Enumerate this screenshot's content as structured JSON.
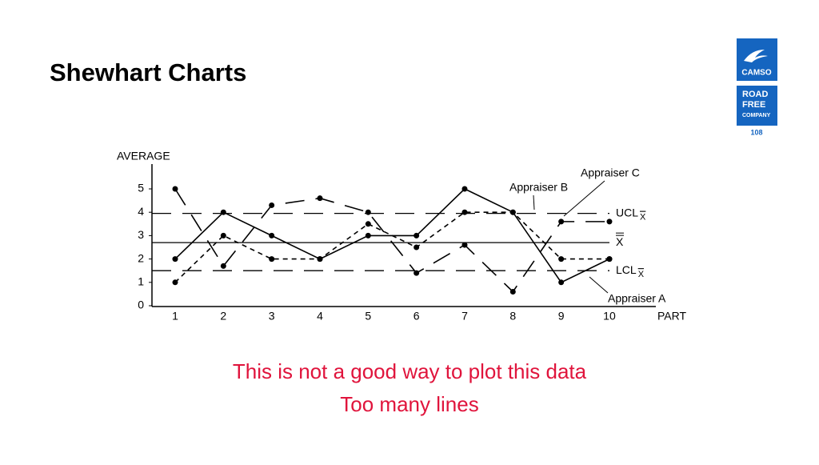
{
  "slide": {
    "title": "Shewhart Charts",
    "logo_top": "CAMSO",
    "logo_bottom": [
      "ROAD",
      "FREE",
      "COMPANY"
    ],
    "page_number": "108",
    "notes": [
      "This is not a good way to plot this data",
      "Too many lines"
    ]
  },
  "chart_data": {
    "type": "line",
    "y_label": "AVERAGE",
    "x_label": "PART",
    "categories": [
      "1",
      "2",
      "3",
      "4",
      "5",
      "6",
      "7",
      "8",
      "9",
      "10"
    ],
    "ylim": [
      0,
      6
    ],
    "yticks": [
      0,
      1,
      2,
      3,
      4,
      5
    ],
    "series": [
      {
        "name": "Appraiser A",
        "color": "#000000",
        "dash": "solid",
        "values": [
          2,
          4,
          3,
          2,
          3,
          3,
          5,
          4,
          1,
          2
        ]
      },
      {
        "name": "Appraiser B",
        "color": "#000000",
        "dash": "short",
        "values": [
          1,
          3,
          2,
          2,
          3.5,
          2.5,
          4,
          4,
          2,
          2
        ]
      },
      {
        "name": "Appraiser C",
        "color": "#000000",
        "dash": "long",
        "values": [
          5,
          1.7,
          4.3,
          4.6,
          4,
          1.4,
          2.6,
          0.6,
          3.6,
          3.6
        ]
      }
    ],
    "reference_lines": [
      {
        "label": "UCL",
        "subscript": "X",
        "value": 3.95,
        "dash": "long"
      },
      {
        "label": "X",
        "value": 2.7,
        "dash": "solid"
      },
      {
        "label": "LCL",
        "subscript": "X",
        "value": 1.5,
        "dash": "long"
      }
    ]
  }
}
